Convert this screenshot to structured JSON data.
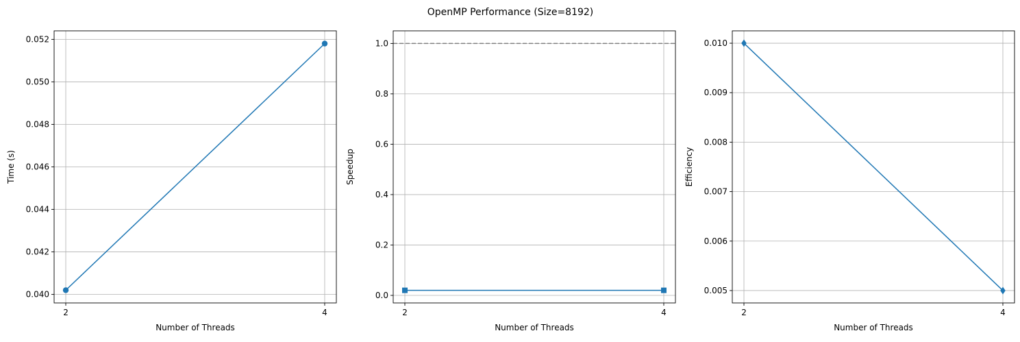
{
  "figure": {
    "suptitle": "OpenMP Performance (Size=8192)"
  },
  "style": {
    "line_color": "#1f77b4",
    "grid_color": "#b0b0b0",
    "reference_line_color": "#808080"
  },
  "chart_data": [
    {
      "type": "line",
      "x": [
        2,
        4
      ],
      "xticks": [
        "2",
        "4"
      ],
      "series": [
        {
          "values": [
            0.0402,
            0.0518
          ],
          "marker": "circle"
        }
      ],
      "xlabel": "Number of Threads",
      "ylabel": "Time (s)",
      "ylim": [
        0.0396,
        0.0524
      ],
      "yticks": [
        0.04,
        0.042,
        0.044,
        0.046,
        0.048,
        0.05,
        0.052
      ],
      "ytick_labels": [
        "0.040",
        "0.042",
        "0.044",
        "0.046",
        "0.048",
        "0.050",
        "0.052"
      ],
      "grid": true
    },
    {
      "type": "line",
      "x": [
        2,
        4
      ],
      "xticks": [
        "2",
        "4"
      ],
      "series": [
        {
          "values": [
            0.02,
            0.02
          ],
          "marker": "square"
        }
      ],
      "reference_line": {
        "y": 1.0,
        "style": "dashed"
      },
      "xlabel": "Number of Threads",
      "ylabel": "Speedup",
      "ylim": [
        -0.03,
        1.05
      ],
      "yticks": [
        0.0,
        0.2,
        0.4,
        0.6,
        0.8,
        1.0
      ],
      "ytick_labels": [
        "0.0",
        "0.2",
        "0.4",
        "0.6",
        "0.8",
        "1.0"
      ],
      "grid": true
    },
    {
      "type": "line",
      "x": [
        2,
        4
      ],
      "xticks": [
        "2",
        "4"
      ],
      "series": [
        {
          "values": [
            0.01,
            0.005
          ],
          "marker": "diamond"
        }
      ],
      "xlabel": "Number of Threads",
      "ylabel": "Efficiency",
      "ylim": [
        0.00475,
        0.01025
      ],
      "yticks": [
        0.005,
        0.006,
        0.007,
        0.008,
        0.009,
        0.01
      ],
      "ytick_labels": [
        "0.005",
        "0.006",
        "0.007",
        "0.008",
        "0.009",
        "0.010"
      ],
      "grid": true
    }
  ]
}
